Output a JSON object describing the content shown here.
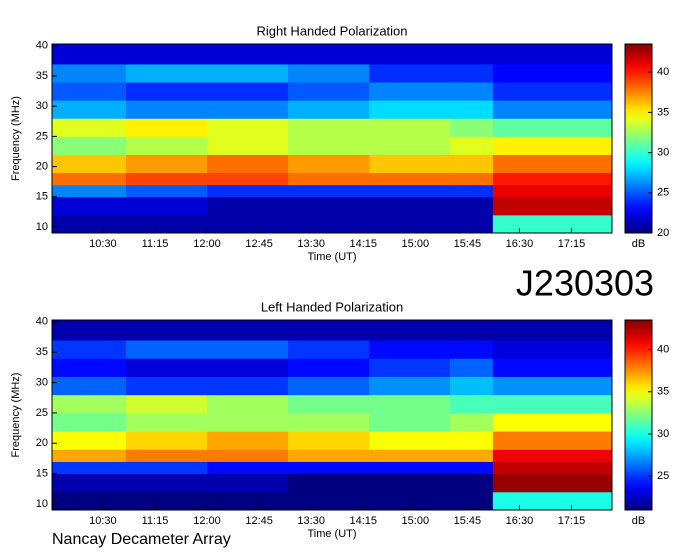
{
  "chart_data": [
    {
      "type": "heatmap",
      "title": "Right Handed Polarization",
      "xlabel": "Time (UT)",
      "ylabel": "Frequency (MHz)",
      "colorbar_label": "dB",
      "colormap": "jet",
      "x": [
        586,
        650,
        720,
        790,
        860,
        930,
        967,
        1070
      ],
      "y": [
        9,
        12,
        15,
        17,
        19,
        22,
        25,
        28,
        31,
        34,
        37,
        40.3
      ],
      "z": [
        [
          21,
          21,
          21,
          21,
          21,
          21,
          30
        ],
        [
          22,
          22,
          21,
          21,
          21,
          21,
          42
        ],
        [
          26,
          25,
          24,
          24,
          24,
          24,
          41
        ],
        [
          38,
          39,
          39,
          38,
          38,
          38,
          40
        ],
        [
          36,
          37,
          38,
          37,
          36,
          36,
          38
        ],
        [
          32,
          33,
          34,
          33,
          33,
          34,
          35
        ],
        [
          34,
          35,
          34,
          33,
          33,
          32,
          31
        ],
        [
          27,
          26,
          26,
          27,
          28,
          28,
          26
        ],
        [
          25,
          24,
          24,
          25,
          26,
          26,
          24
        ],
        [
          26,
          27,
          27,
          26,
          24,
          24,
          23
        ],
        [
          22,
          22,
          22,
          22,
          22,
          22,
          22
        ]
      ],
      "xlim": [
        586,
        1070
      ],
      "ylim": [
        9,
        40.3
      ],
      "zlim": [
        20,
        43.5
      ],
      "xticks": [
        {
          "value": 630,
          "label": "10:30"
        },
        {
          "value": 675,
          "label": "11:15"
        },
        {
          "value": 720,
          "label": "12:00"
        },
        {
          "value": 765,
          "label": "12:45"
        },
        {
          "value": 810,
          "label": "13:30"
        },
        {
          "value": 855,
          "label": "14:15"
        },
        {
          "value": 900,
          "label": "15:00"
        },
        {
          "value": 945,
          "label": "15:45"
        },
        {
          "value": 990,
          "label": "16:30"
        },
        {
          "value": 1035,
          "label": "17:15"
        }
      ],
      "yticks": [
        10,
        15,
        20,
        25,
        30,
        35,
        40
      ],
      "zticks": [
        20,
        25,
        30,
        35,
        40
      ]
    },
    {
      "type": "heatmap",
      "title": "Left Handed Polarization",
      "xlabel": "Time (UT)",
      "ylabel": "Frequency (MHz)",
      "colorbar_label": "dB",
      "colormap": "jet",
      "x": [
        586,
        650,
        720,
        790,
        860,
        930,
        967,
        1070
      ],
      "y": [
        9,
        12,
        15,
        17,
        19,
        22,
        25,
        28,
        31,
        34,
        37,
        40.3
      ],
      "z": [
        [
          21,
          21,
          21,
          21,
          21,
          21,
          30
        ],
        [
          22,
          22,
          22,
          21,
          21,
          21,
          43
        ],
        [
          25,
          25,
          24,
          24,
          24,
          24,
          42
        ],
        [
          37,
          38,
          38,
          37,
          37,
          37,
          41
        ],
        [
          35,
          36,
          37,
          36,
          35,
          35,
          38
        ],
        [
          32,
          33,
          33,
          33,
          32,
          33,
          35
        ],
        [
          33,
          34,
          33,
          32,
          32,
          31,
          31
        ],
        [
          26,
          25,
          25,
          26,
          27,
          28,
          27
        ],
        [
          24,
          23,
          23,
          24,
          25,
          26,
          24
        ],
        [
          25,
          26,
          26,
          25,
          24,
          24,
          23
        ],
        [
          22,
          22,
          22,
          22,
          22,
          22,
          22
        ]
      ],
      "xlim": [
        586,
        1070
      ],
      "ylim": [
        9,
        40.3
      ],
      "zlim": [
        21,
        43.5
      ],
      "xticks": [
        {
          "value": 630,
          "label": "10:30"
        },
        {
          "value": 675,
          "label": "11:15"
        },
        {
          "value": 720,
          "label": "12:00"
        },
        {
          "value": 765,
          "label": "12:45"
        },
        {
          "value": 810,
          "label": "13:30"
        },
        {
          "value": 855,
          "label": "14:15"
        },
        {
          "value": 900,
          "label": "15:00"
        },
        {
          "value": 945,
          "label": "15:45"
        },
        {
          "value": 990,
          "label": "16:30"
        },
        {
          "value": 1035,
          "label": "17:15"
        }
      ],
      "yticks": [
        10,
        15,
        20,
        25,
        30,
        35,
        40
      ],
      "zticks": [
        25,
        30,
        35,
        40
      ]
    }
  ],
  "annotation": "J230303",
  "footer": "Nancay Decameter Array"
}
